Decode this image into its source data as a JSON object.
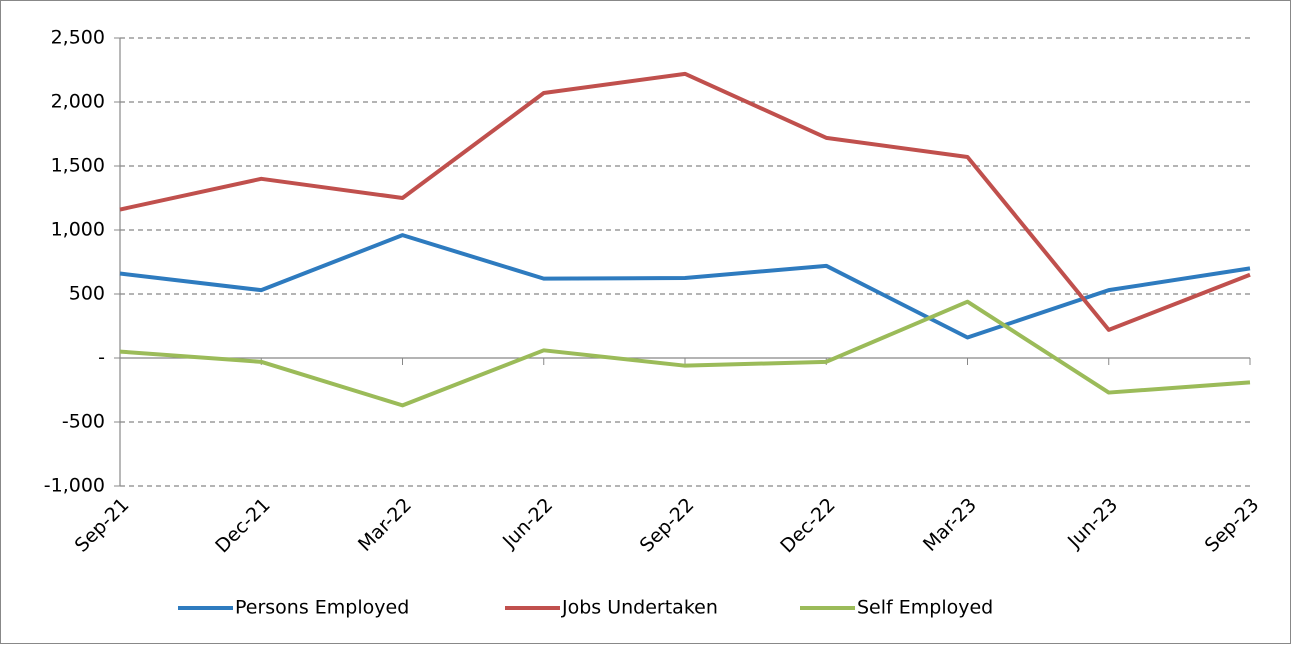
{
  "chart_data": {
    "type": "line",
    "categories": [
      "Sep-21",
      "Dec-21",
      "Mar-22",
      "Jun-22",
      "Sep-22",
      "Dec-22",
      "Mar-23",
      "Jun-23",
      "Sep-23"
    ],
    "series": [
      {
        "name": "Persons Employed",
        "color": "#2e7bbf",
        "values": [
          660,
          530,
          960,
          620,
          625,
          720,
          160,
          530,
          700
        ]
      },
      {
        "name": "Jobs Undertaken",
        "color": "#c0504d",
        "values": [
          1160,
          1400,
          1250,
          2070,
          2220,
          1720,
          1570,
          220,
          650
        ]
      },
      {
        "name": "Self Employed",
        "color": "#9bbb59",
        "values": [
          50,
          -30,
          -370,
          60,
          -60,
          -30,
          440,
          -270,
          -190
        ]
      }
    ],
    "ylim": [
      -1000,
      2500
    ],
    "yticks": [
      {
        "value": -1000,
        "label": "-1,000"
      },
      -500,
      {
        "value": 0,
        "label": "-"
      },
      500,
      {
        "value": 1000,
        "label": "1,000"
      },
      {
        "value": 1500,
        "label": "1,500"
      },
      {
        "value": 2000,
        "label": "2,000"
      },
      {
        "value": 2500,
        "label": "2,500"
      }
    ],
    "grid": true,
    "legend": "bottom"
  }
}
